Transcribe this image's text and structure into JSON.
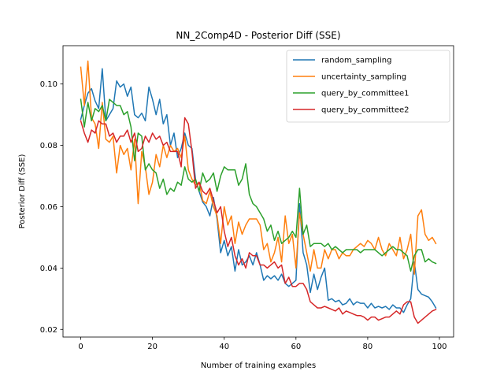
{
  "chart_data": {
    "type": "line",
    "title": "NN_2Comp4D - Posterior Diff (SSE)",
    "xlabel": "Number of training examples",
    "ylabel": "Posterior Diff (SSE)",
    "xlim": [
      -4.95,
      103.95
    ],
    "ylim": [
      0.0175,
      0.1125
    ],
    "xticks": [
      0,
      20,
      40,
      60,
      80,
      100
    ],
    "xtick_labels": [
      "0",
      "20",
      "40",
      "60",
      "80",
      "100"
    ],
    "yticks": [
      0.02,
      0.04,
      0.06,
      0.08,
      0.1
    ],
    "ytick_labels": [
      "0.02",
      "0.04",
      "0.06",
      "0.08",
      "0.10"
    ],
    "grid": false,
    "legend_position": "top-right",
    "x": [
      0,
      1,
      2,
      3,
      4,
      5,
      6,
      7,
      8,
      9,
      10,
      11,
      12,
      13,
      14,
      15,
      16,
      17,
      18,
      19,
      20,
      21,
      22,
      23,
      24,
      25,
      26,
      27,
      28,
      29,
      30,
      31,
      32,
      33,
      34,
      35,
      36,
      37,
      38,
      39,
      40,
      41,
      42,
      43,
      44,
      45,
      46,
      47,
      48,
      49,
      50,
      51,
      52,
      53,
      54,
      55,
      56,
      57,
      58,
      59,
      60,
      61,
      62,
      63,
      64,
      65,
      66,
      67,
      68,
      69,
      70,
      71,
      72,
      73,
      74,
      75,
      76,
      77,
      78,
      79,
      80,
      81,
      82,
      83,
      84,
      85,
      86,
      87,
      88,
      89,
      90,
      91,
      92,
      93,
      94,
      95,
      96,
      97,
      98,
      99
    ],
    "series": [
      {
        "name": "random_sampling",
        "color": "#1f77b4",
        "values": [
          0.0885,
          0.093,
          0.097,
          0.0985,
          0.0945,
          0.092,
          0.105,
          0.088,
          0.09,
          0.092,
          0.101,
          0.099,
          0.1,
          0.096,
          0.099,
          0.09,
          0.089,
          0.0905,
          0.088,
          0.099,
          0.095,
          0.09,
          0.095,
          0.087,
          0.09,
          0.08,
          0.084,
          0.076,
          0.079,
          0.084,
          0.08,
          0.079,
          0.069,
          0.065,
          0.0615,
          0.06,
          0.057,
          0.063,
          0.056,
          0.045,
          0.049,
          0.044,
          0.047,
          0.039,
          0.046,
          0.041,
          0.042,
          0.044,
          0.041,
          0.045,
          0.041,
          0.036,
          0.0375,
          0.0365,
          0.0375,
          0.036,
          0.038,
          0.035,
          0.034,
          0.035,
          0.036,
          0.061,
          0.045,
          0.041,
          0.032,
          0.038,
          0.033,
          0.037,
          0.04,
          0.0295,
          0.03,
          0.029,
          0.0295,
          0.028,
          0.0285,
          0.03,
          0.028,
          0.029,
          0.0285,
          0.0285,
          0.027,
          0.0285,
          0.027,
          0.0275,
          0.027,
          0.0275,
          0.0265,
          0.028,
          0.027,
          0.027,
          0.0255,
          0.028,
          0.03,
          0.042,
          0.033,
          0.0315,
          0.031,
          0.0305,
          0.029,
          0.027
        ]
      },
      {
        "name": "uncertainty_sampling",
        "color": "#ff7f0e",
        "values": [
          0.1055,
          0.093,
          0.1075,
          0.089,
          0.087,
          0.079,
          0.094,
          0.082,
          0.081,
          0.083,
          0.071,
          0.08,
          0.077,
          0.079,
          0.072,
          0.082,
          0.061,
          0.078,
          0.073,
          0.064,
          0.068,
          0.077,
          0.073,
          0.08,
          0.076,
          0.08,
          0.078,
          0.079,
          0.076,
          0.083,
          0.072,
          0.069,
          0.067,
          0.068,
          0.062,
          0.061,
          0.065,
          0.06,
          0.057,
          0.048,
          0.06,
          0.054,
          0.057,
          0.048,
          0.055,
          0.051,
          0.054,
          0.056,
          0.056,
          0.056,
          0.054,
          0.046,
          0.048,
          0.042,
          0.045,
          0.05,
          0.042,
          0.057,
          0.048,
          0.051,
          0.04,
          0.058,
          0.051,
          0.045,
          0.039,
          0.046,
          0.04,
          0.04,
          0.046,
          0.043,
          0.046,
          0.046,
          0.043,
          0.045,
          0.044,
          0.044,
          0.046,
          0.047,
          0.048,
          0.047,
          0.049,
          0.048,
          0.046,
          0.05,
          0.046,
          0.044,
          0.048,
          0.046,
          0.044,
          0.05,
          0.043,
          0.046,
          0.051,
          0.038,
          0.057,
          0.059,
          0.051,
          0.049,
          0.05,
          0.048
        ]
      },
      {
        "name": "query_by_committee1",
        "color": "#2ca02c",
        "values": [
          0.095,
          0.086,
          0.094,
          0.088,
          0.092,
          0.091,
          0.093,
          0.088,
          0.095,
          0.094,
          0.093,
          0.093,
          0.09,
          0.091,
          0.086,
          0.075,
          0.084,
          0.083,
          0.072,
          0.074,
          0.072,
          0.071,
          0.066,
          0.069,
          0.064,
          0.066,
          0.065,
          0.068,
          0.067,
          0.073,
          0.069,
          0.068,
          0.069,
          0.065,
          0.071,
          0.068,
          0.069,
          0.071,
          0.065,
          0.07,
          0.073,
          0.072,
          0.072,
          0.072,
          0.067,
          0.069,
          0.074,
          0.064,
          0.061,
          0.06,
          0.058,
          0.056,
          0.052,
          0.054,
          0.049,
          0.052,
          0.048,
          0.049,
          0.05,
          0.052,
          0.05,
          0.066,
          0.051,
          0.054,
          0.047,
          0.048,
          0.048,
          0.048,
          0.047,
          0.048,
          0.046,
          0.047,
          0.046,
          0.045,
          0.046,
          0.046,
          0.046,
          0.046,
          0.045,
          0.046,
          0.046,
          0.046,
          0.046,
          0.045,
          0.044,
          0.045,
          0.046,
          0.047,
          0.046,
          0.046,
          0.045,
          0.044,
          0.039,
          0.044,
          0.046,
          0.046,
          0.042,
          0.043,
          0.042,
          0.0415
        ]
      },
      {
        "name": "query_by_committee2",
        "color": "#d62728",
        "values": [
          0.088,
          0.084,
          0.081,
          0.085,
          0.084,
          0.088,
          0.087,
          0.087,
          0.083,
          0.084,
          0.081,
          0.083,
          0.083,
          0.085,
          0.081,
          0.084,
          0.078,
          0.079,
          0.083,
          0.081,
          0.084,
          0.082,
          0.083,
          0.08,
          0.081,
          0.078,
          0.078,
          0.078,
          0.073,
          0.089,
          0.087,
          0.078,
          0.066,
          0.068,
          0.065,
          0.064,
          0.066,
          0.062,
          0.058,
          0.06,
          0.052,
          0.047,
          0.05,
          0.044,
          0.041,
          0.043,
          0.04,
          0.045,
          0.044,
          0.044,
          0.041,
          0.041,
          0.04,
          0.041,
          0.042,
          0.04,
          0.041,
          0.035,
          0.037,
          0.034,
          0.034,
          0.035,
          0.035,
          0.033,
          0.029,
          0.028,
          0.027,
          0.027,
          0.0275,
          0.027,
          0.0265,
          0.026,
          0.027,
          0.025,
          0.026,
          0.0255,
          0.025,
          0.0245,
          0.0245,
          0.024,
          0.023,
          0.024,
          0.024,
          0.023,
          0.0235,
          0.024,
          0.024,
          0.025,
          0.026,
          0.025,
          0.028,
          0.029,
          0.029,
          0.024,
          0.022,
          0.023,
          0.024,
          0.025,
          0.026,
          0.0265
        ]
      }
    ]
  }
}
